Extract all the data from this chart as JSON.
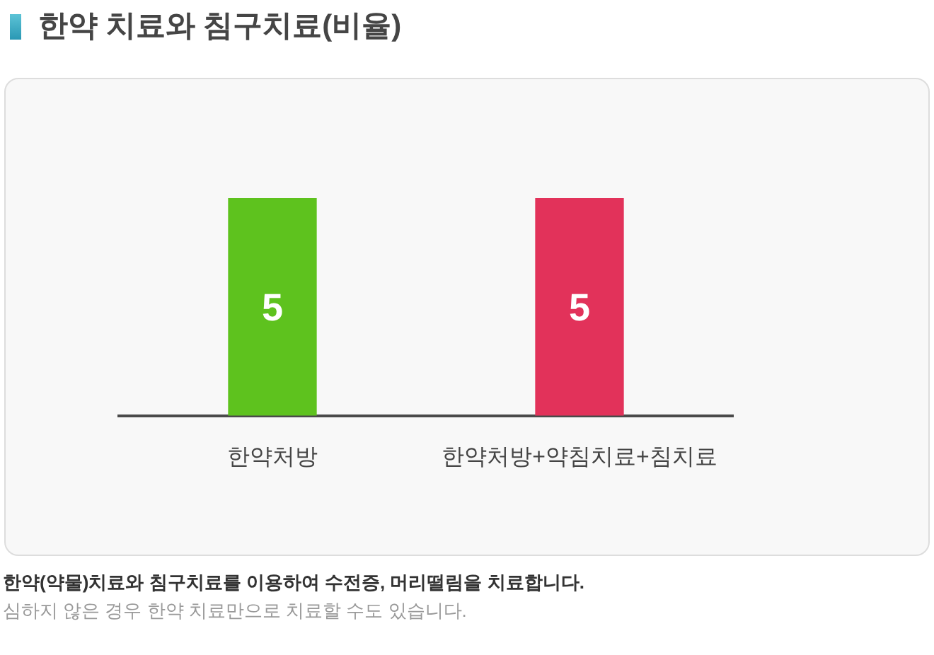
{
  "chart_data": {
    "type": "bar",
    "title": "한약 치료와 침구치료(비율)",
    "categories": [
      "한약처방",
      "한약처방+약침치료+침치료"
    ],
    "values": [
      5,
      5
    ],
    "colors": [
      "#5ec21e",
      "#e2325a"
    ],
    "data_labels": true,
    "annotations": [
      "한약(약물)치료와 침구치료를 이용하여 수전증, 머리떨림을 치료합니다.",
      "심하지 않은 경우 한약 치료만으로 치료할 수도 있습니다."
    ]
  }
}
